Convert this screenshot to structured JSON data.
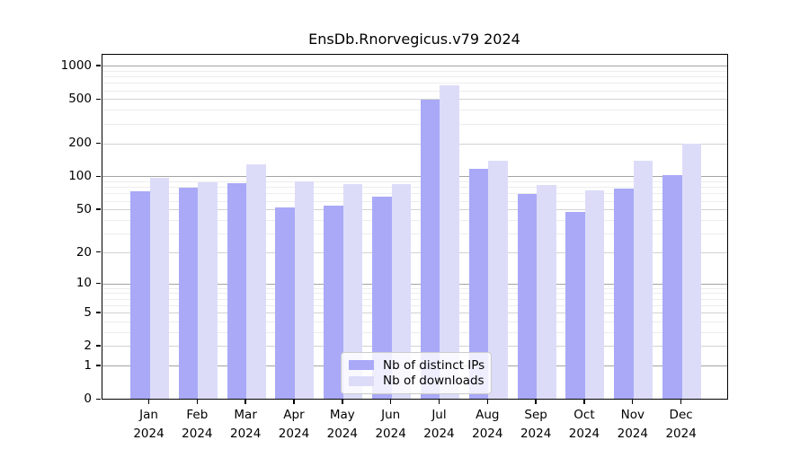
{
  "title": "EnsDb.Rnorvegicus.v79 2024",
  "colors": {
    "ips_bar": "#a9a9f8",
    "downloads_bar": "#dcdcf9",
    "grid_power": "#a4a4a4",
    "grid_labeled": "#d2d2d2",
    "grid_minor": "#ededed",
    "axis": "#000000"
  },
  "legend": {
    "items": [
      {
        "label": "Nb of distinct IPs",
        "color_key": "ips_bar"
      },
      {
        "label": "Nb of downloads",
        "color_key": "downloads_bar"
      }
    ]
  },
  "chart_data": {
    "type": "bar",
    "title": "EnsDb.Rnorvegicus.v79 2024",
    "categories": [
      "Jan 2024",
      "Feb 2024",
      "Mar 2024",
      "Apr 2024",
      "May 2024",
      "Jun 2024",
      "Jul 2024",
      "Aug 2024",
      "Sep 2024",
      "Oct 2024",
      "Nov 2024",
      "Dec 2024"
    ],
    "series": [
      {
        "name": "Nb of distinct IPs",
        "values": [
          73,
          78,
          86,
          52,
          54,
          65,
          487,
          117,
          69,
          47,
          77,
          103
        ]
      },
      {
        "name": "Nb of downloads",
        "values": [
          97,
          88,
          129,
          90,
          85,
          85,
          660,
          137,
          83,
          74,
          138,
          198
        ]
      }
    ],
    "xlabel": "",
    "ylabel": "",
    "yscale": "log1p",
    "ylim": [
      0,
      1000
    ],
    "yticks": [
      0,
      1,
      2,
      5,
      10,
      20,
      50,
      100,
      200,
      500,
      1000
    ],
    "grid": true,
    "legend_position": "lower center"
  }
}
